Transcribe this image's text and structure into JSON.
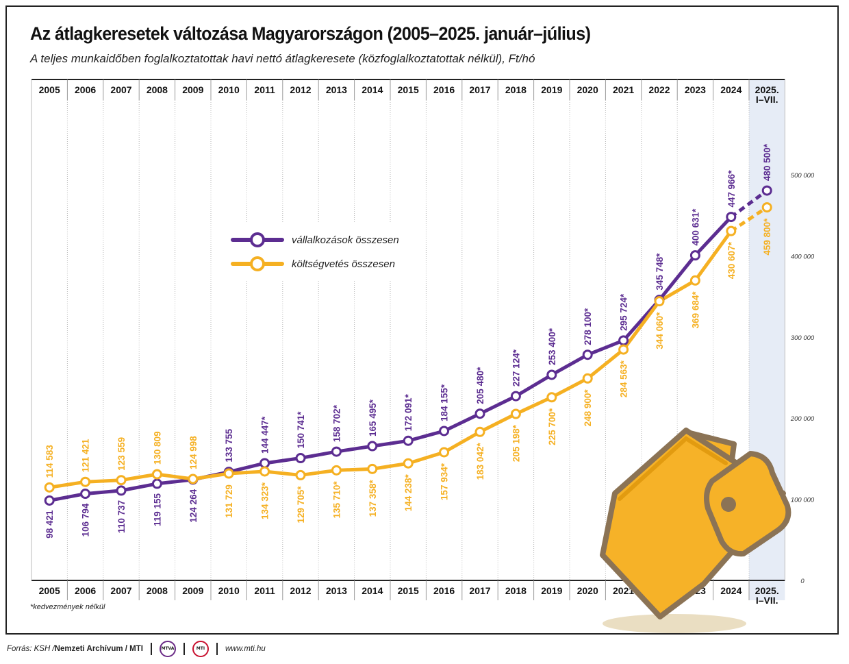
{
  "title": "Az átlagkeresetek változása Magyarországon (2005–2025. január–július)",
  "subtitle": "A teljes munkaidőben foglalkoztatottak havi nettó átlagkeresete (közfoglalkoztatottak nélkül), Ft/hó",
  "footnote": "*kedvezmények nélkül",
  "source": {
    "prefix": "Forrás: KSH / ",
    "bold": "Nemzeti Archívum / MTI",
    "logo1": "MTVA",
    "logo2": "MTI",
    "url": "www.mti.hu"
  },
  "colors": {
    "purple": "#5c2d91",
    "orange": "#f5b022",
    "highlight": "#e6ecf6"
  },
  "chart_data": {
    "type": "line",
    "categories": [
      "2005",
      "2006",
      "2007",
      "2008",
      "2009",
      "2010",
      "2011",
      "2012",
      "2013",
      "2014",
      "2015",
      "2016",
      "2017",
      "2018",
      "2019",
      "2020",
      "2021",
      "2022",
      "2023",
      "2024",
      "2025.|I–VII."
    ],
    "ylim": [
      0,
      560000
    ],
    "yticks": [
      0,
      100000,
      200000,
      300000,
      400000,
      500000
    ],
    "ytick_labels": [
      "0",
      "100 000",
      "200 000",
      "300 000",
      "400 000",
      "500 000"
    ],
    "series": [
      {
        "name": "vállalkozások összesen",
        "values": [
          98421,
          106794,
          110737,
          119155,
          124264,
          133755,
          144447,
          150741,
          158702,
          165495,
          172091,
          184155,
          205480,
          227124,
          253400,
          278100,
          295724,
          345748,
          400631,
          447966,
          480500
        ],
        "labels": [
          "98 421",
          "106 794",
          "110 737",
          "119 155",
          "124 264",
          "133 755",
          "144 447*",
          "150 741*",
          "158 702*",
          "165 495*",
          "172 091*",
          "184 155*",
          "205 480*",
          "227 124*",
          "253 400*",
          "278 100*",
          "295 724*",
          "345 748*",
          "400 631*",
          "447 966*",
          "480 500*"
        ]
      },
      {
        "name": "költségvetés összesen",
        "values": [
          114583,
          121421,
          123559,
          130809,
          124998,
          131729,
          134323,
          129705,
          135710,
          137358,
          144238,
          157934,
          183042,
          205198,
          225700,
          248900,
          284563,
          344060,
          369684,
          430607,
          459800
        ],
        "labels": [
          "114 583",
          "121 421",
          "123 559",
          "130 809",
          "124 998",
          "131 729",
          "134 323*",
          "129 705*",
          "135 710*",
          "137 358*",
          "144 238*",
          "157 934*",
          "183 042*",
          "205 198*",
          "225 700*",
          "248 900*",
          "284 563*",
          "344 060*",
          "369 684*",
          "430 607*",
          "459 800*"
        ]
      }
    ]
  }
}
